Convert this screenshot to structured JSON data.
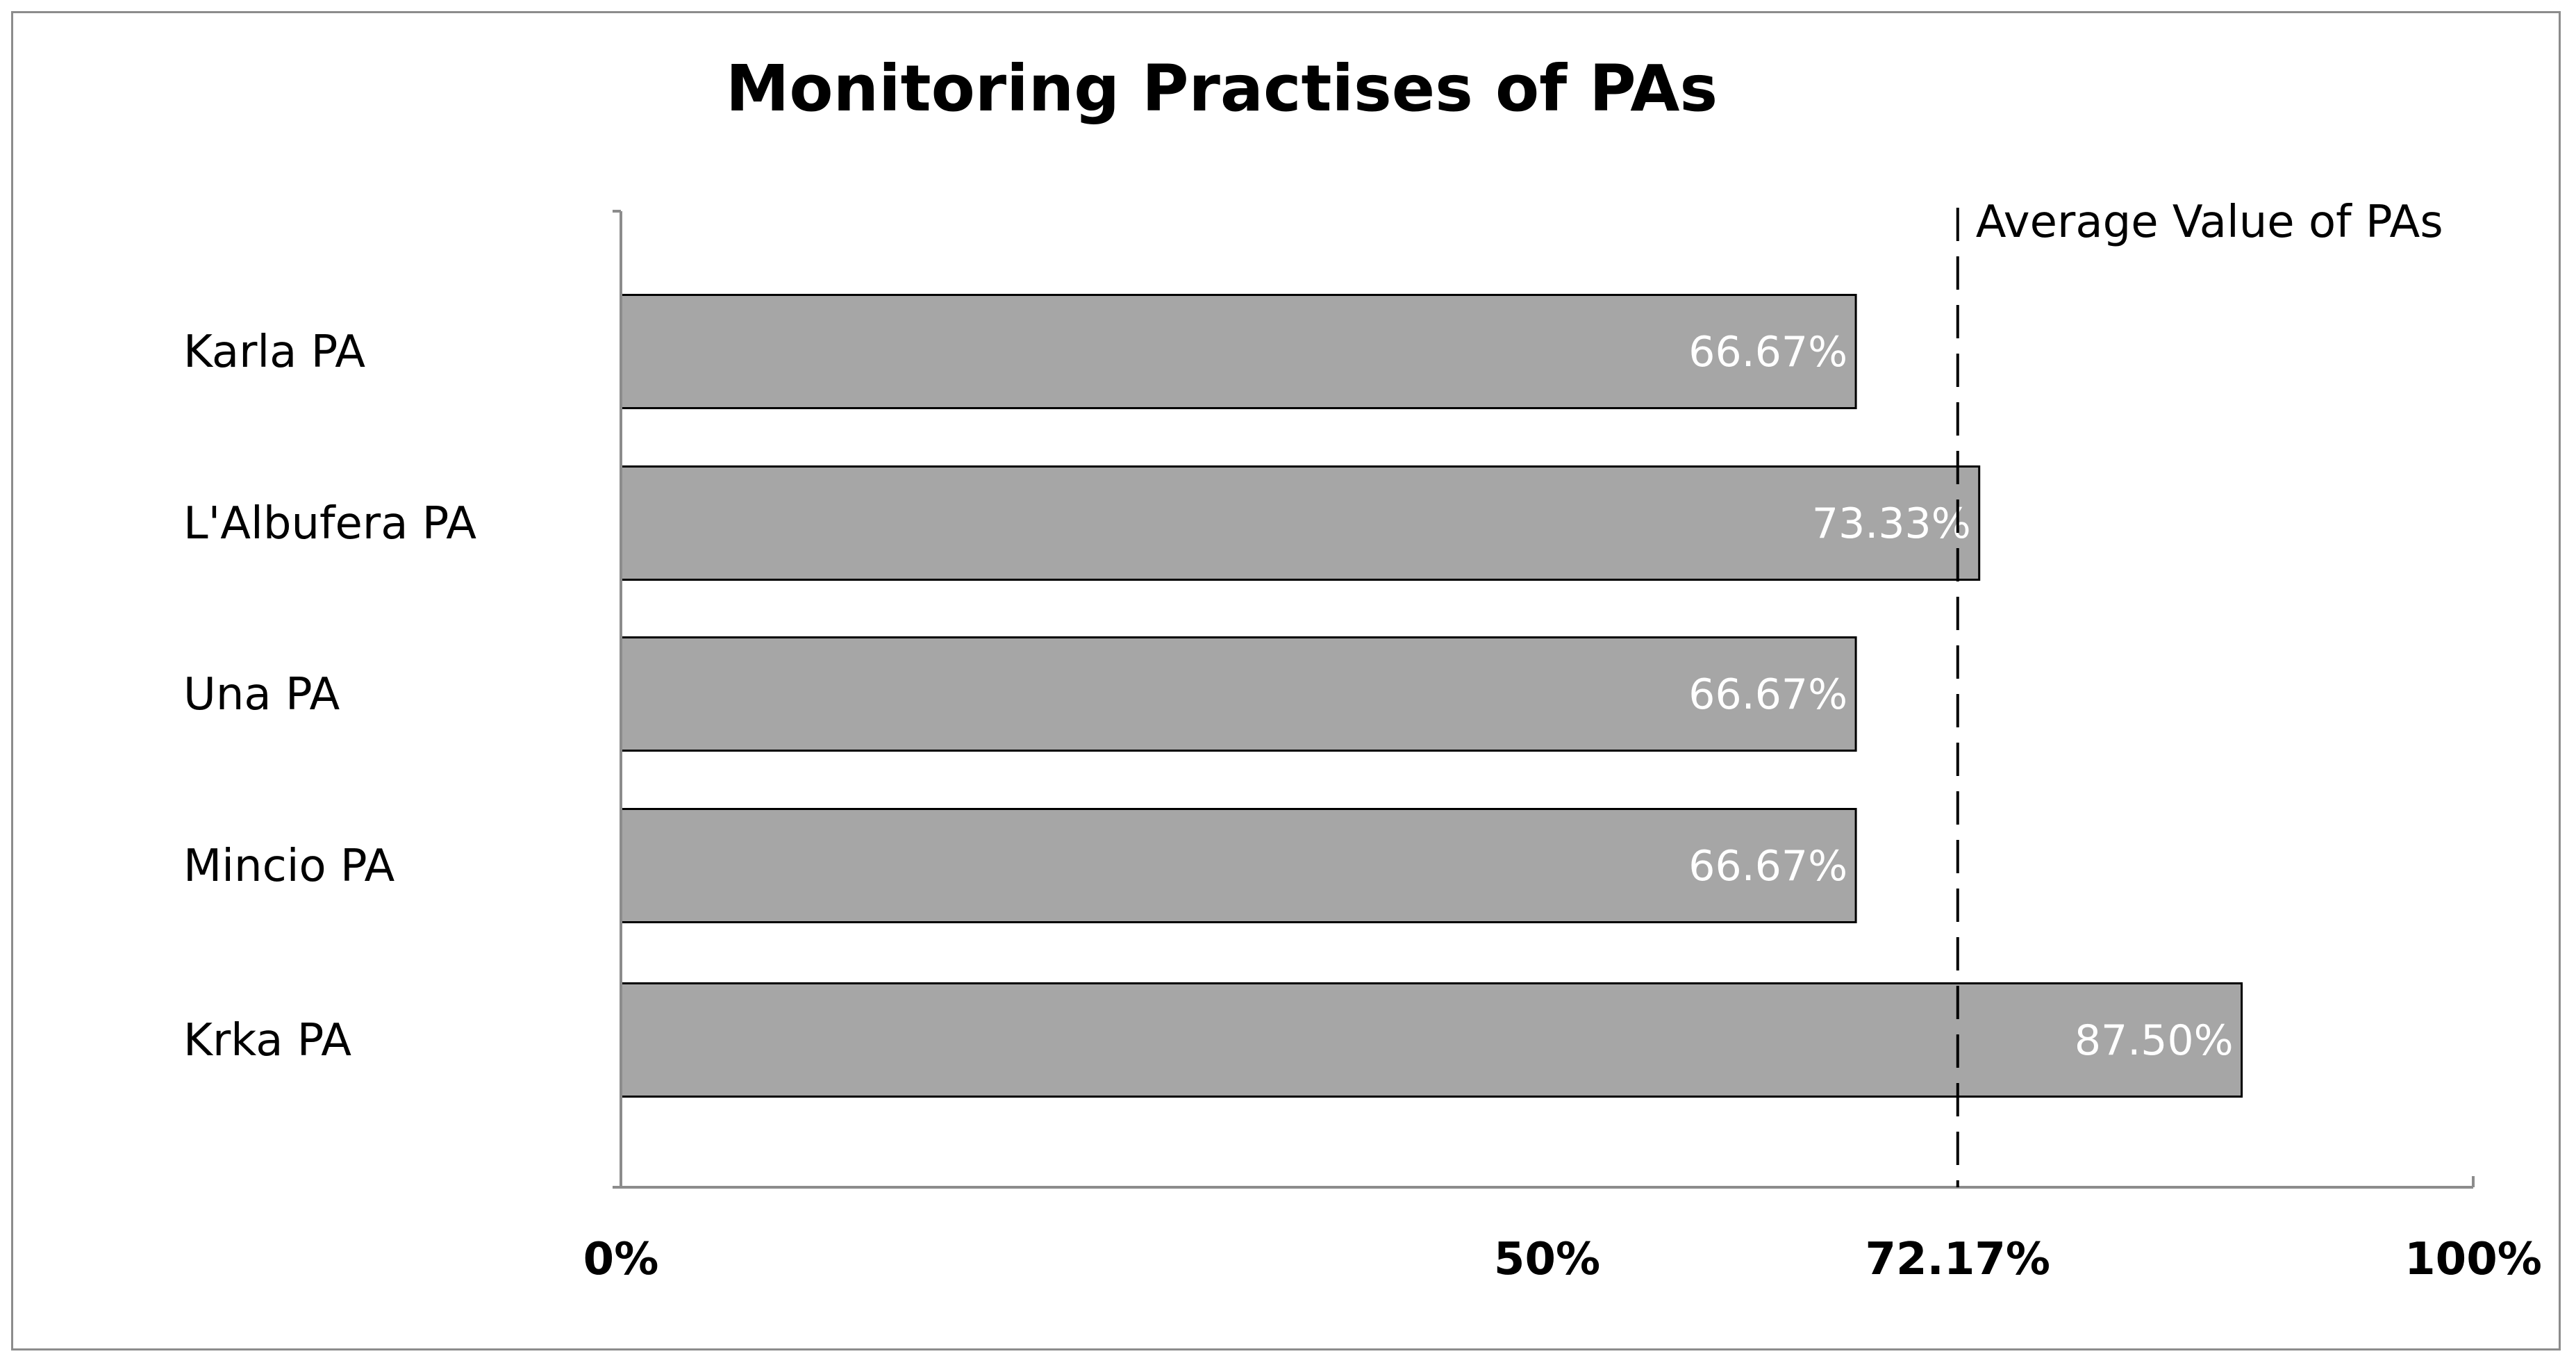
{
  "chart_data": {
    "type": "bar",
    "orientation": "horizontal",
    "title": "Monitoring Practises of PAs",
    "categories": [
      "Karla PA",
      "L'Albufera PA",
      "Una PA",
      "Mincio PA",
      "Krka PA"
    ],
    "values": [
      66.67,
      73.33,
      66.67,
      66.67,
      87.5
    ],
    "value_labels": [
      "66.67%",
      "73.33%",
      "66.67%",
      "66.67%",
      "87.50%"
    ],
    "xlim": [
      0,
      100
    ],
    "x_ticks": [
      {
        "value": 0,
        "label": "0%"
      },
      {
        "value": 50,
        "label": "50%"
      },
      {
        "value": 72.17,
        "label": "72.17%"
      },
      {
        "value": 100,
        "label": "100%"
      }
    ],
    "reference_line": {
      "value": 72.17,
      "label": "Average Value of PAs",
      "style": "dashed"
    },
    "grid": false,
    "legend": "none",
    "colors": {
      "bar_fill": "#a6a6a6",
      "bar_stroke": "#000000",
      "data_label": "#ffffff",
      "axis": "#8c8c8c",
      "frame": "#8c8c8c"
    }
  }
}
